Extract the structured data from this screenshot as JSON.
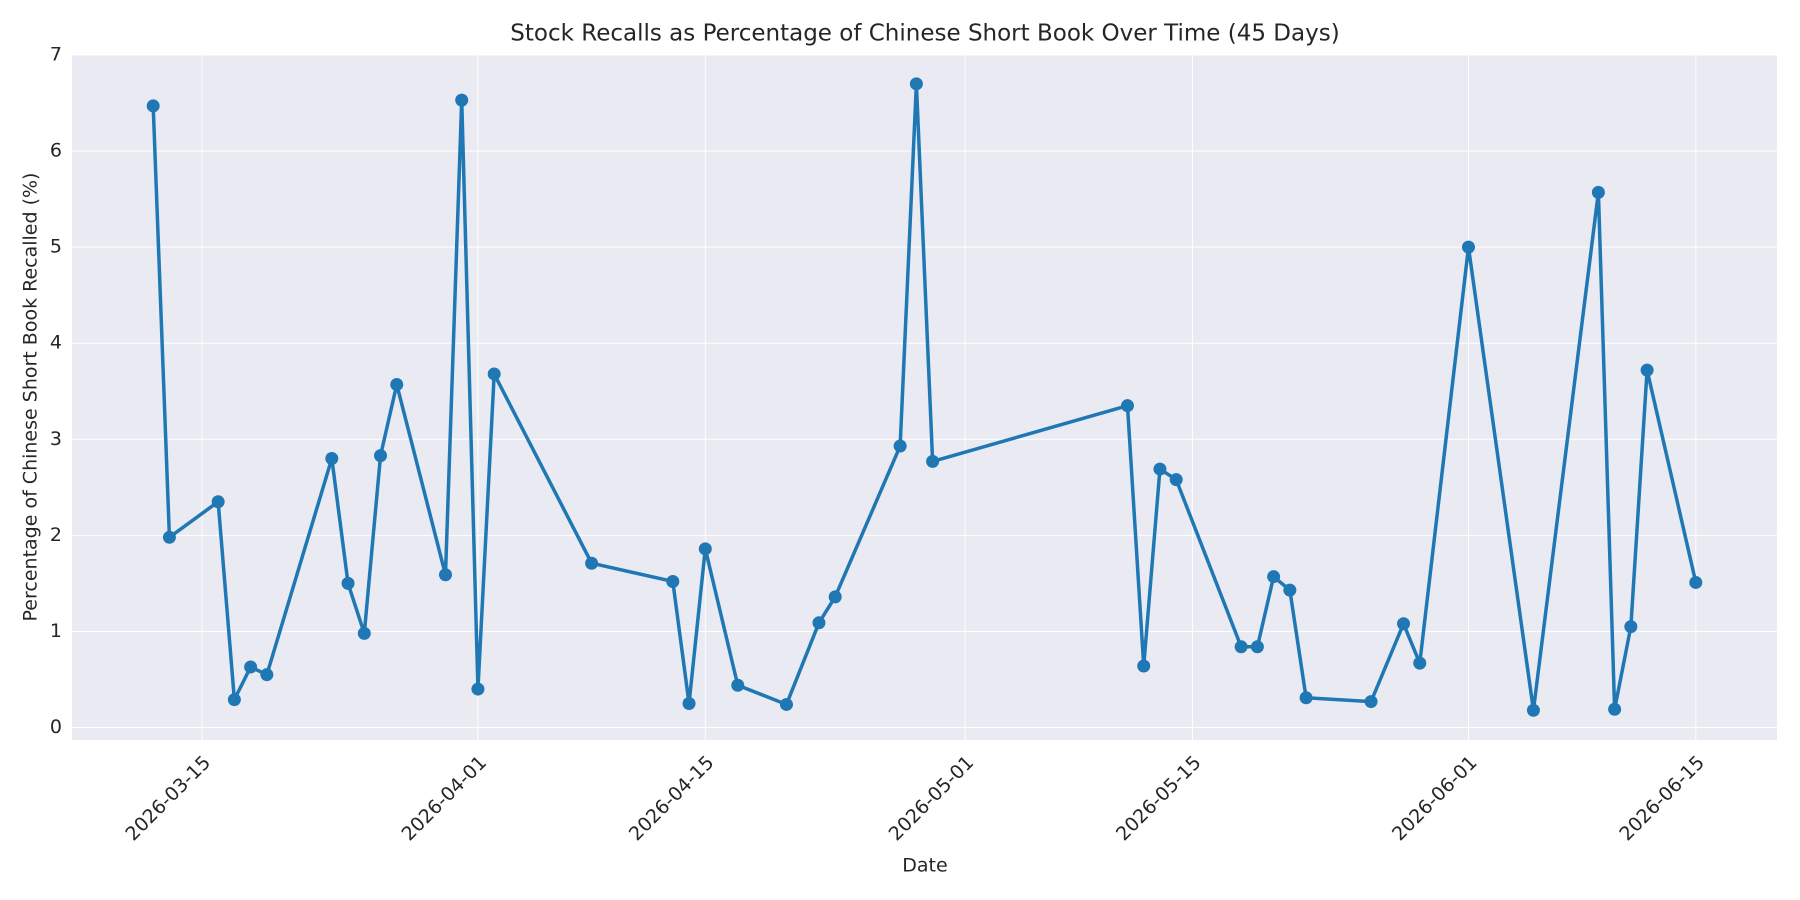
{
  "chart_data": {
    "type": "line",
    "title": "Stock Recalls as Percentage of Chinese Short Book Over Time (45 Days)",
    "x_label": "Date",
    "y_label": "Percentage of Chinese Short Book Recalled (%)",
    "x": [
      "2026-03-12",
      "2026-03-13",
      "2026-03-16",
      "2026-03-17",
      "2026-03-18",
      "2026-03-19",
      "2026-03-23",
      "2026-03-24",
      "2026-03-25",
      "2026-03-26",
      "2026-03-27",
      "2026-03-30",
      "2026-03-31",
      "2026-04-01",
      "2026-04-02",
      "2026-04-08",
      "2026-04-13",
      "2026-04-14",
      "2026-04-15",
      "2026-04-17",
      "2026-04-20",
      "2026-04-22",
      "2026-04-23",
      "2026-04-27",
      "2026-04-28",
      "2026-04-29",
      "2026-05-11",
      "2026-05-12",
      "2026-05-13",
      "2026-05-14",
      "2026-05-18",
      "2026-05-19",
      "2026-05-20",
      "2026-05-21",
      "2026-05-22",
      "2026-05-26",
      "2026-05-28",
      "2026-05-29",
      "2026-06-01",
      "2026-06-05",
      "2026-06-09",
      "2026-06-10",
      "2026-06-11",
      "2026-06-12",
      "2026-06-15"
    ],
    "values": [
      6.47,
      1.98,
      2.35,
      0.29,
      0.63,
      0.55,
      2.8,
      1.5,
      0.98,
      2.83,
      3.57,
      1.59,
      6.53,
      0.4,
      3.68,
      1.71,
      1.52,
      0.25,
      1.86,
      0.44,
      0.24,
      1.09,
      1.36,
      2.93,
      6.7,
      2.77,
      3.35,
      0.64,
      2.69,
      2.58,
      0.84,
      0.84,
      1.57,
      1.43,
      0.31,
      0.27,
      1.08,
      0.67,
      5.0,
      0.18,
      5.57,
      0.19,
      1.05,
      3.72,
      1.51
    ],
    "color": "#1f77b4",
    "xlim": [
      "2026-03-07",
      "2026-06-20"
    ],
    "xticks": [
      "2026-03-15",
      "2026-04-01",
      "2026-04-15",
      "2026-05-01",
      "2026-05-15",
      "2026-06-01",
      "2026-06-15"
    ],
    "ylim": [
      -0.13,
      7
    ],
    "yticks": [
      0,
      1,
      2,
      3,
      4,
      5,
      6,
      7
    ],
    "grid": true
  }
}
